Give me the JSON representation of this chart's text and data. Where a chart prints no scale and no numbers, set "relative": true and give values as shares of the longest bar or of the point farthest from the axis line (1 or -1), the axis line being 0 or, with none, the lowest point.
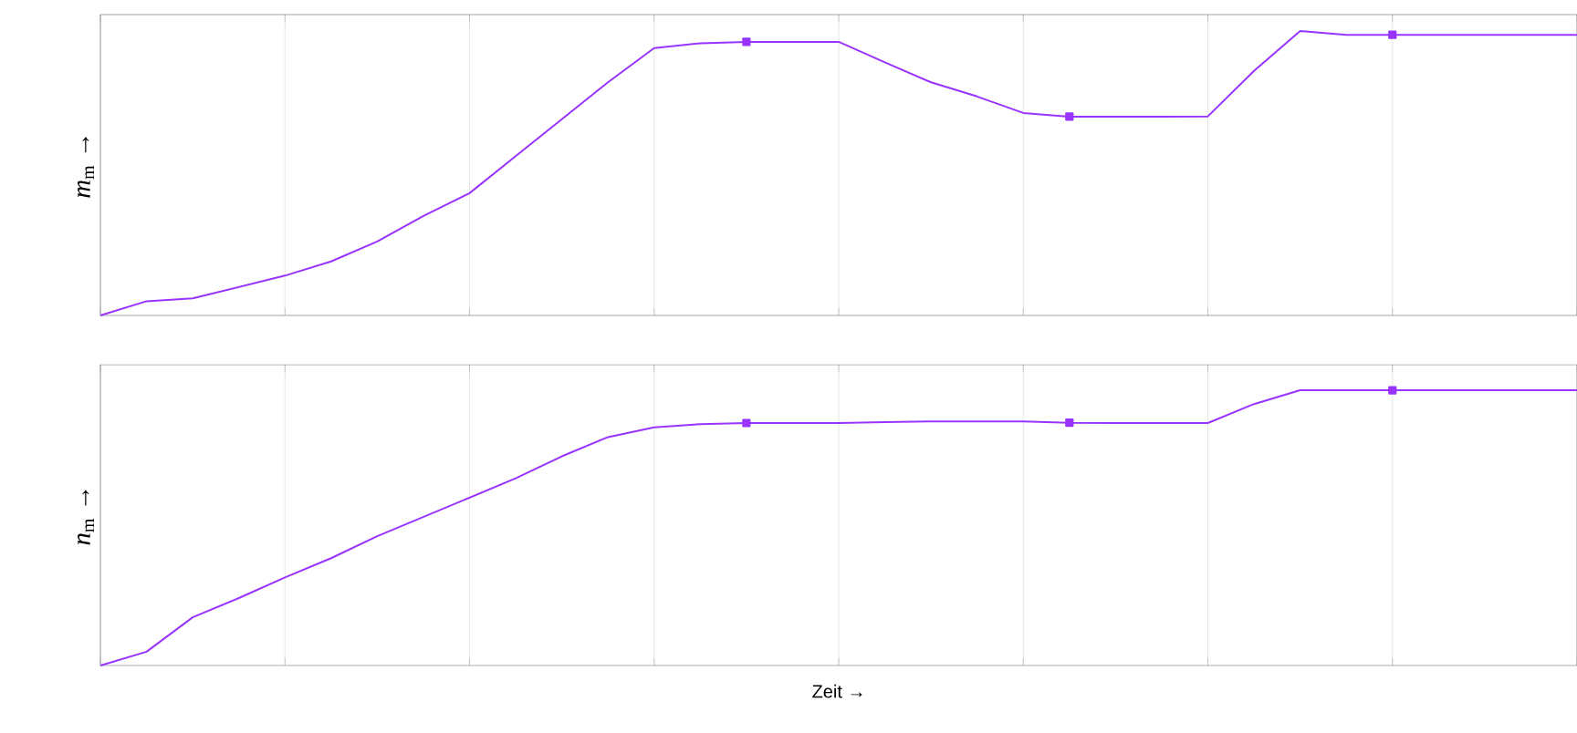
{
  "chart_data": [
    {
      "type": "line",
      "ylabel": "*m*$_{m}$ →",
      "relative": true,
      "grid": "x",
      "tick_labels": false,
      "categories": [
        null,
        null,
        null,
        null,
        null,
        null,
        null,
        null,
        null,
        null,
        null,
        null,
        null,
        null,
        null,
        null,
        null,
        null,
        null,
        null,
        null,
        null,
        null,
        null,
        null,
        null,
        null,
        null,
        null,
        null,
        null,
        null,
        null
      ],
      "series": [
        {
          "color": "#9933ff",
          "values": [
            0,
            0.05,
            0.06,
            0.1,
            0.14,
            0.19,
            0.26,
            0.35,
            0.43,
            0.56,
            0.69,
            0.82,
            0.94,
            0.957,
            0.962,
            0.962,
            0.962,
            0.89,
            0.82,
            0.77,
            0.712,
            0.699,
            0.699,
            0.699,
            0.7,
            0.86,
            1,
            0.987,
            0.987,
            0.987,
            0.987,
            0.987,
            0.987
          ]
        }
      ]
    },
    {
      "type": "line",
      "xlabel": "Zeit →",
      "ylabel": "*n*$_{m}$ →",
      "relative": true,
      "grid": "x",
      "tick_labels": false,
      "categories": [
        null,
        null,
        null,
        null,
        null,
        null,
        null,
        null,
        null,
        null,
        null,
        null,
        null,
        null,
        null,
        null,
        null,
        null,
        null,
        null,
        null,
        null,
        null,
        null,
        null,
        null,
        null,
        null,
        null,
        null,
        null,
        null,
        null
      ],
      "series": [
        {
          "color": "#9933ff",
          "values": [
            0,
            0.05,
            0.175,
            0.245,
            0.32,
            0.39,
            0.47,
            0.54,
            0.61,
            0.68,
            0.76,
            0.83,
            0.865,
            0.877,
            0.881,
            0.881,
            0.881,
            0.884,
            0.887,
            0.887,
            0.887,
            0.882,
            0.881,
            0.881,
            0.881,
            0.95,
            1,
            1,
            1,
            1,
            1,
            1,
            1
          ]
        }
      ]
    }
  ]
}
